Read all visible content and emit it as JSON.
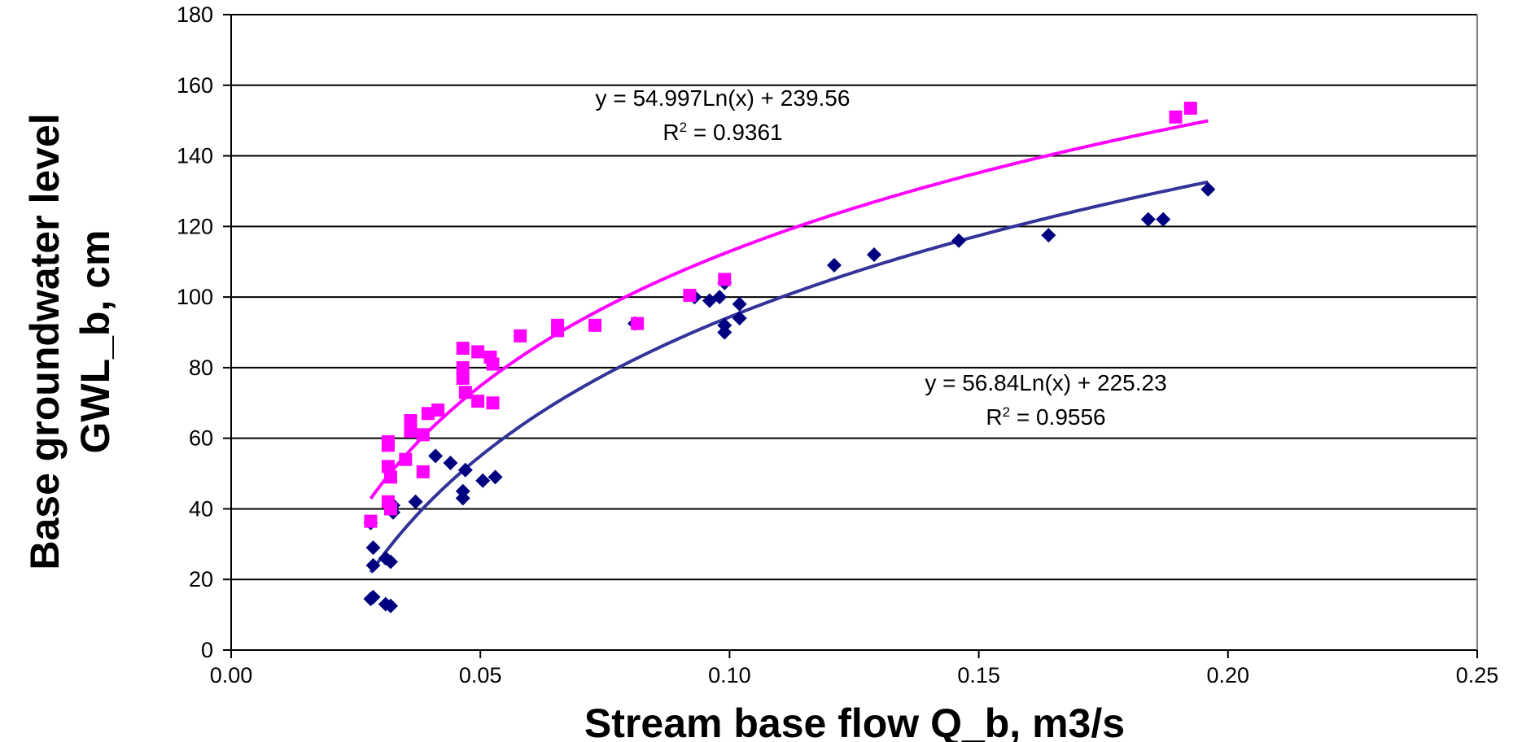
{
  "chart_data": {
    "type": "scatter",
    "title": "",
    "xlabel": "Stream base flow Q_b, m3/s",
    "ylabel_lines": [
      "Base groundwater level",
      "GWL_b, cm"
    ],
    "xlim": [
      0,
      0.25
    ],
    "ylim": [
      0,
      180
    ],
    "x_ticks": [
      "0.00",
      "0.05",
      "0.10",
      "0.15",
      "0.20",
      "0.25"
    ],
    "y_ticks": [
      "0",
      "20",
      "40",
      "60",
      "80",
      "100",
      "120",
      "140",
      "160",
      "180"
    ],
    "grid": "horizontal",
    "series": [
      {
        "marker": "diamond",
        "color": "#000080",
        "points": [
          [
            0.028,
            36
          ],
          [
            0.0285,
            29
          ],
          [
            0.0285,
            24
          ],
          [
            0.0285,
            15
          ],
          [
            0.028,
            14.5
          ],
          [
            0.031,
            13
          ],
          [
            0.032,
            12.5
          ],
          [
            0.031,
            26
          ],
          [
            0.032,
            25
          ],
          [
            0.0325,
            39
          ],
          [
            0.0325,
            41
          ],
          [
            0.037,
            42
          ],
          [
            0.041,
            55
          ],
          [
            0.044,
            53
          ],
          [
            0.047,
            51
          ],
          [
            0.0465,
            45
          ],
          [
            0.0465,
            43
          ],
          [
            0.0505,
            48
          ],
          [
            0.053,
            49
          ],
          [
            0.081,
            92.5
          ],
          [
            0.093,
            100
          ],
          [
            0.096,
            99
          ],
          [
            0.098,
            100
          ],
          [
            0.099,
            104
          ],
          [
            0.099,
            92
          ],
          [
            0.099,
            90
          ],
          [
            0.102,
            94
          ],
          [
            0.102,
            98
          ],
          [
            0.121,
            109
          ],
          [
            0.129,
            112
          ],
          [
            0.146,
            116
          ],
          [
            0.164,
            117.5
          ],
          [
            0.184,
            122
          ],
          [
            0.187,
            122
          ],
          [
            0.196,
            130.5
          ]
        ],
        "trendline": {
          "type": "log",
          "a": 56.84,
          "b": 225.23,
          "x_range": [
            0.028,
            0.196
          ]
        },
        "equation": "y = 56.84Ln(x) + 225.23",
        "r2_label": "R",
        "r2_sup": "2",
        "r2_value": " = 0.9556"
      },
      {
        "marker": "square",
        "color": "#FF00FF",
        "points": [
          [
            0.028,
            36.5
          ],
          [
            0.0315,
            58
          ],
          [
            0.0315,
            59
          ],
          [
            0.0315,
            52
          ],
          [
            0.032,
            49
          ],
          [
            0.0315,
            42
          ],
          [
            0.032,
            40
          ],
          [
            0.035,
            54
          ],
          [
            0.036,
            62
          ],
          [
            0.036,
            65
          ],
          [
            0.0385,
            61
          ],
          [
            0.0385,
            50.5
          ],
          [
            0.0395,
            67
          ],
          [
            0.0415,
            68
          ],
          [
            0.0465,
            85.5
          ],
          [
            0.0465,
            80
          ],
          [
            0.0465,
            77
          ],
          [
            0.047,
            73
          ],
          [
            0.0495,
            84.5
          ],
          [
            0.0495,
            70.5
          ],
          [
            0.052,
            83
          ],
          [
            0.0525,
            81
          ],
          [
            0.0525,
            70
          ],
          [
            0.058,
            89
          ],
          [
            0.0655,
            90.5
          ],
          [
            0.0655,
            92
          ],
          [
            0.073,
            92
          ],
          [
            0.0815,
            92.5
          ],
          [
            0.092,
            100.5
          ],
          [
            0.099,
            105
          ],
          [
            0.1895,
            151
          ],
          [
            0.1925,
            153.5
          ]
        ],
        "trendline": {
          "type": "log",
          "a": 54.997,
          "b": 239.56,
          "x_range": [
            0.028,
            0.196
          ]
        },
        "equation": "y = 54.997Ln(x) + 239.56",
        "r2_label": "R",
        "r2_sup": "2",
        "r2_value": " = 0.9361"
      }
    ]
  }
}
